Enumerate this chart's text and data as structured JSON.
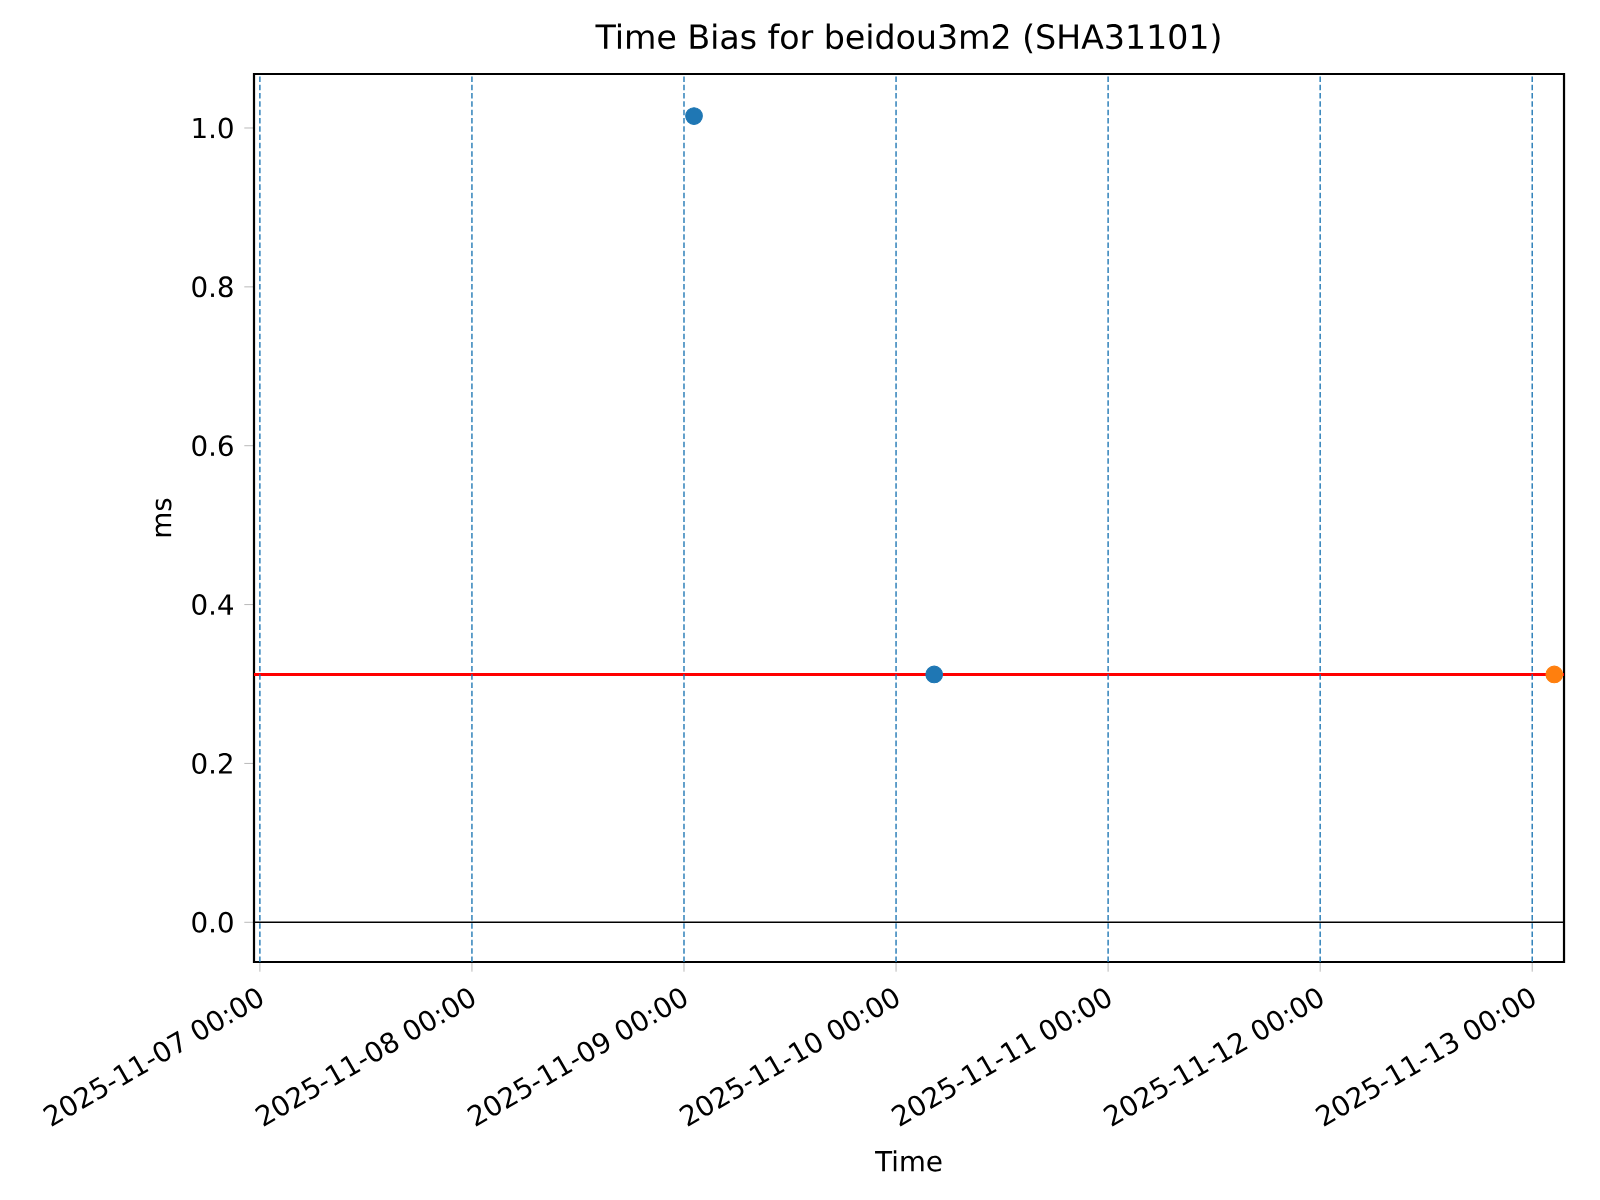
{
  "chart_data": {
    "type": "scatter",
    "title": "Time Bias for beidou3m2 (SHA31101)",
    "xlabel": "Time",
    "ylabel": "ms",
    "marker": "circle",
    "series": [
      {
        "color": "#1f77b4",
        "x": [
          "2025-11-09T01:08",
          "2025-11-10T04:19"
        ],
        "values": [
          1.015,
          0.312
        ]
      },
      {
        "color": "#ff7f0e",
        "x": [
          "2025-11-13T02:30"
        ],
        "values": [
          0.312
        ]
      }
    ],
    "xlim": [
      "2025-11-06T23:20",
      "2025-11-13T03:36"
    ],
    "xticks": [
      {
        "value": "2025-11-07T00:00",
        "label": "2025-11-07 00:00"
      },
      {
        "value": "2025-11-08T00:00",
        "label": "2025-11-08 00:00"
      },
      {
        "value": "2025-11-09T00:00",
        "label": "2025-11-09 00:00"
      },
      {
        "value": "2025-11-10T00:00",
        "label": "2025-11-10 00:00"
      },
      {
        "value": "2025-11-11T00:00",
        "label": "2025-11-11 00:00"
      },
      {
        "value": "2025-11-12T00:00",
        "label": "2025-11-12 00:00"
      },
      {
        "value": "2025-11-13T00:00",
        "label": "2025-11-13 00:00"
      }
    ],
    "ylim": [
      -0.05,
      1.068
    ],
    "yticks": [
      {
        "value": 0,
        "label": "0.0"
      },
      {
        "value": 0.2,
        "label": "0.2"
      },
      {
        "value": 0.4,
        "label": "0.4"
      },
      {
        "value": 0.6,
        "label": "0.6"
      },
      {
        "value": 0.8,
        "label": "0.8"
      },
      {
        "value": 1.0,
        "label": "1.0"
      }
    ],
    "ref_lines": [
      {
        "axis": "y",
        "value": 0,
        "color": "#000000",
        "line_style": "solid"
      },
      {
        "axis": "y",
        "value": 0.312,
        "color": "#ff0000",
        "line_style": "solid"
      },
      {
        "axis": "x",
        "value": "2025-11-07T00:00",
        "color": "#1f77b4",
        "line_style": "dashed"
      },
      {
        "axis": "x",
        "value": "2025-11-08T00:00",
        "color": "#1f77b4",
        "line_style": "dashed"
      },
      {
        "axis": "x",
        "value": "2025-11-09T00:00",
        "color": "#1f77b4",
        "line_style": "dashed"
      },
      {
        "axis": "x",
        "value": "2025-11-10T00:00",
        "color": "#1f77b4",
        "line_style": "dashed"
      },
      {
        "axis": "x",
        "value": "2025-11-11T00:00",
        "color": "#1f77b4",
        "line_style": "dashed"
      },
      {
        "axis": "x",
        "value": "2025-11-12T00:00",
        "color": "#1f77b4",
        "line_style": "dashed"
      },
      {
        "axis": "x",
        "value": "2025-11-13T00:00",
        "color": "#1f77b4",
        "line_style": "dashed"
      }
    ]
  }
}
